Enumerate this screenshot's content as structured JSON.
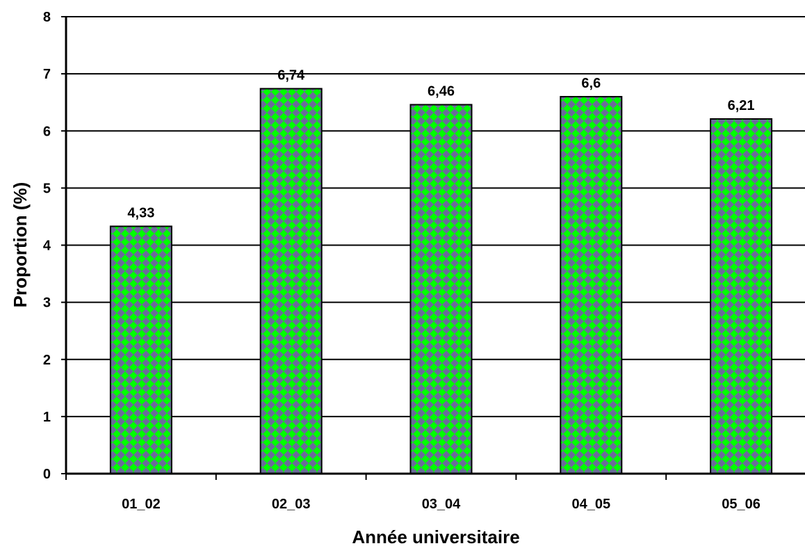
{
  "chart_data": {
    "type": "bar",
    "title": "",
    "xlabel": "Année universitaire",
    "ylabel": "Proportion (%)",
    "categories": [
      "01_02",
      "02_03",
      "03_04",
      "04_05",
      "05_06"
    ],
    "values": [
      4.33,
      6.74,
      6.46,
      6.6,
      6.21
    ],
    "value_labels": [
      "4,33",
      "6,74",
      "6,46",
      "6,6",
      "6,21"
    ],
    "ylim": [
      0,
      8
    ],
    "yticks": [
      0,
      1,
      2,
      3,
      4,
      5,
      6,
      7,
      8
    ],
    "ytick_labels": [
      "0",
      "1",
      "2",
      "3",
      "4",
      "5",
      "6",
      "7",
      "8"
    ],
    "grid": true,
    "legend": "none",
    "colors": {
      "bar_fill": "#00ff00",
      "bar_pattern": "#6b6b9a",
      "bar_stroke": "#000000",
      "grid": "#000000",
      "axis": "#000000"
    }
  }
}
